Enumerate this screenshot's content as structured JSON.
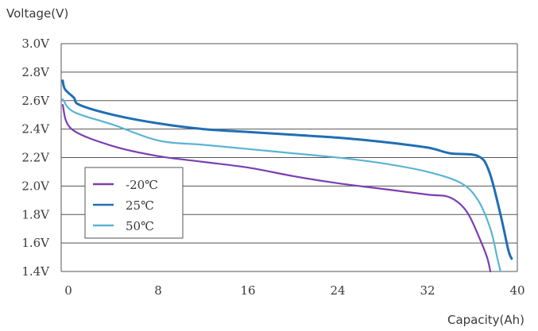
{
  "chart_data": {
    "type": "line",
    "ylabel": "Voltage(V)",
    "xlabel": "Capacity(Ah)",
    "xlim": [
      0,
      40
    ],
    "ylim": [
      1.4,
      3.0
    ],
    "x_ticks": [
      0,
      8,
      16,
      24,
      32,
      40
    ],
    "x_tick_labels": [
      "0",
      "8",
      "16",
      "24",
      "32",
      "40"
    ],
    "y_ticks": [
      1.4,
      1.6,
      1.8,
      2.0,
      2.2,
      2.4,
      2.6,
      2.8,
      3.0
    ],
    "y_tick_labels": [
      "1.4V",
      "1.6V",
      "1.8V",
      "2.0V",
      "2.2V",
      "2.4V",
      "2.6V",
      "2.8V",
      "3.0V"
    ],
    "grid": "horizontal",
    "legend_position": "bottom-left",
    "series": [
      {
        "name": "-20℃",
        "color": "#7b3fb0",
        "points": [
          [
            -0.5,
            2.57
          ],
          [
            0.3,
            2.4
          ],
          [
            4,
            2.28
          ],
          [
            8,
            2.21
          ],
          [
            12,
            2.17
          ],
          [
            16,
            2.13
          ],
          [
            20,
            2.07
          ],
          [
            24,
            2.02
          ],
          [
            28,
            1.98
          ],
          [
            32,
            1.94
          ],
          [
            34,
            1.92
          ],
          [
            35.5,
            1.82
          ],
          [
            36.7,
            1.62
          ],
          [
            37.3,
            1.5
          ],
          [
            37.6,
            1.4
          ]
        ]
      },
      {
        "name": "25℃",
        "color": "#1f6fb4",
        "points": [
          [
            -0.5,
            2.74
          ],
          [
            -0.3,
            2.68
          ],
          [
            0.5,
            2.62
          ],
          [
            1.0,
            2.57
          ],
          [
            4,
            2.5
          ],
          [
            8,
            2.44
          ],
          [
            12,
            2.4
          ],
          [
            16,
            2.38
          ],
          [
            20,
            2.36
          ],
          [
            24,
            2.34
          ],
          [
            28,
            2.31
          ],
          [
            32,
            2.27
          ],
          [
            34,
            2.23
          ],
          [
            36.5,
            2.21
          ],
          [
            37.5,
            2.1
          ],
          [
            38.5,
            1.8
          ],
          [
            39.2,
            1.55
          ],
          [
            39.5,
            1.49
          ]
        ]
      },
      {
        "name": "50℃",
        "color": "#5ab4d4",
        "points": [
          [
            -0.5,
            2.61
          ],
          [
            0.5,
            2.52
          ],
          [
            4,
            2.43
          ],
          [
            8,
            2.32
          ],
          [
            12,
            2.29
          ],
          [
            16,
            2.26
          ],
          [
            20,
            2.23
          ],
          [
            24,
            2.2
          ],
          [
            28,
            2.16
          ],
          [
            32,
            2.1
          ],
          [
            35,
            2.02
          ],
          [
            36.5,
            1.9
          ],
          [
            37.6,
            1.7
          ],
          [
            38.2,
            1.5
          ],
          [
            38.5,
            1.4
          ]
        ]
      }
    ]
  }
}
